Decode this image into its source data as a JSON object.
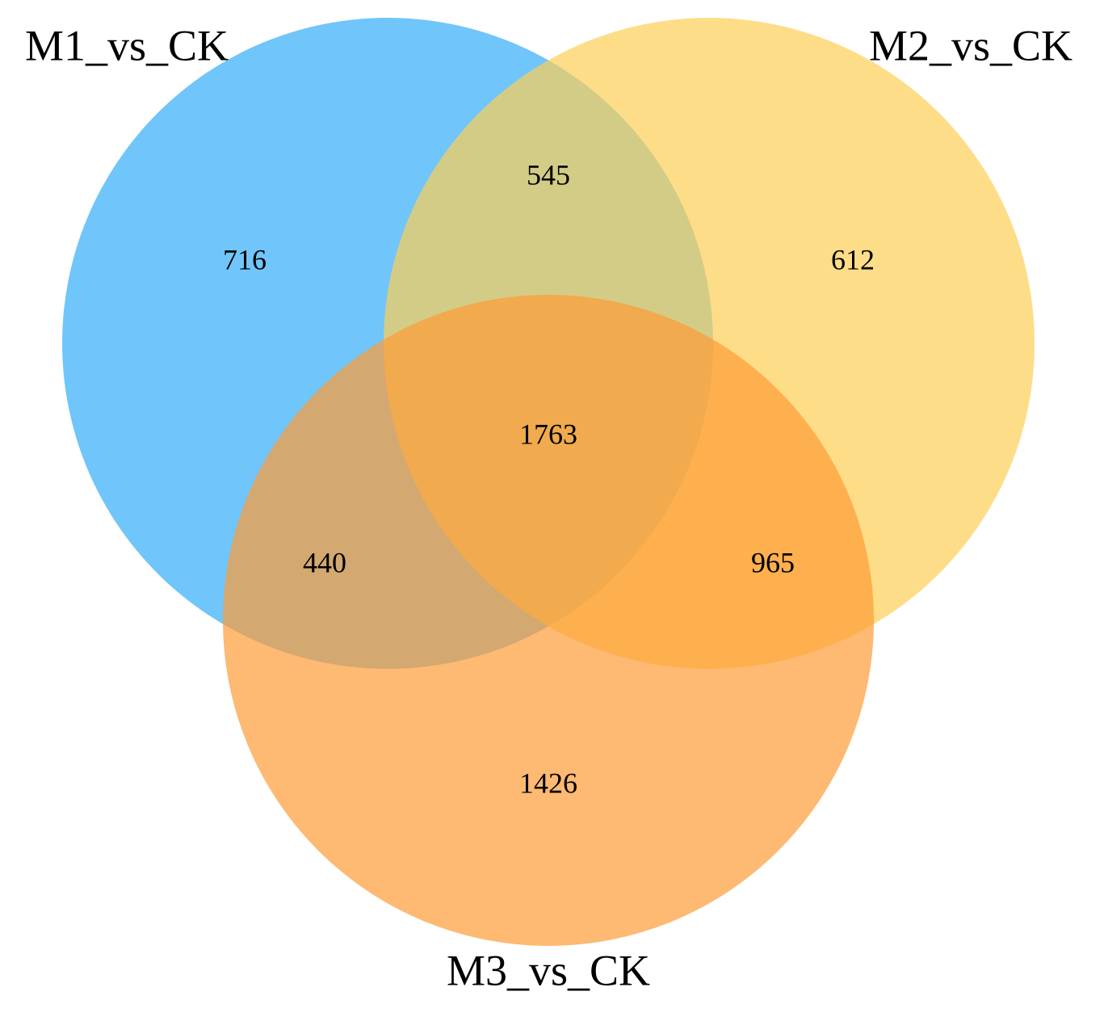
{
  "chart_data": {
    "type": "venn",
    "sets": [
      {
        "name": "M1_vs_CK",
        "color": "#33adfa"
      },
      {
        "name": "M2_vs_CK",
        "color": "#fecf55"
      },
      {
        "name": "M3_vs_CK",
        "color": "#fe9b36"
      }
    ],
    "values": [
      716,
      545,
      612,
      1763,
      440,
      965,
      1426
    ]
  }
}
